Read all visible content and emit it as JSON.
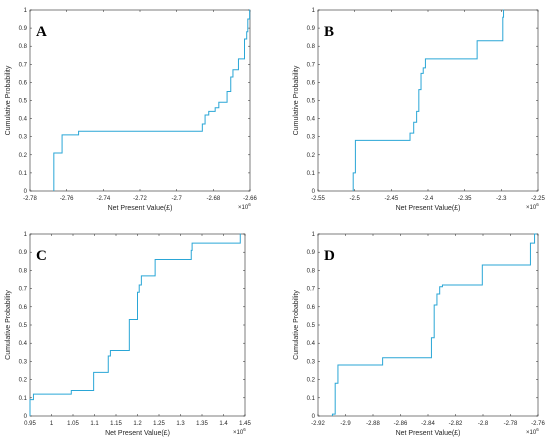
{
  "figure": {
    "line_color": "#2aa6d6",
    "axis_color": "#262626"
  },
  "chart_data": [
    {
      "panel": "A",
      "type": "line",
      "step": true,
      "xlabel": "Net Present Value(£)",
      "ylabel": "Cumulative Probability",
      "x_multiplier": "×10",
      "x_multiplier_exp": "6",
      "xlim": [
        -2.78,
        -2.66
      ],
      "ylim": [
        0,
        1
      ],
      "xticks": [
        "-2.78",
        "-2.76",
        "-2.74",
        "-2.72",
        "-2.7",
        "-2.68",
        "-2.66"
      ],
      "yticks": [
        "0",
        "0.1",
        "0.2",
        "0.3",
        "0.4",
        "0.5",
        "0.6",
        "0.7",
        "0.8",
        "0.9",
        "1"
      ],
      "series": [
        {
          "x": [
            -2.767,
            -2.767,
            -2.7625,
            -2.7625,
            -2.7535,
            -2.7535,
            -2.686,
            -2.686,
            -2.6845,
            -2.6845,
            -2.6825,
            -2.6825,
            -2.679,
            -2.679,
            -2.677,
            -2.677,
            -2.6755,
            -2.6755,
            -2.6725,
            -2.6725,
            -2.6705,
            -2.6705,
            -2.6693,
            -2.6693,
            -2.6663,
            -2.6663,
            -2.663,
            -2.663,
            -2.6618,
            -2.6618,
            -2.6612,
            -2.6612,
            -2.6602,
            -2.6602,
            -2.66
          ],
          "y": [
            0,
            0.21,
            0.21,
            0.31,
            0.31,
            0.33,
            0.33,
            0.37,
            0.37,
            0.42,
            0.42,
            0.44,
            0.44,
            0.46,
            0.46,
            0.49,
            0.49,
            0.49,
            0.49,
            0.55,
            0.55,
            0.63,
            0.63,
            0.67,
            0.67,
            0.73,
            0.73,
            0.84,
            0.84,
            0.88,
            0.88,
            0.95,
            0.95,
            1.0,
            1.0
          ]
        }
      ]
    },
    {
      "panel": "B",
      "type": "line",
      "step": true,
      "xlabel": "Net Present Value(£)",
      "ylabel": "Cumulative Probability",
      "x_multiplier": "×10",
      "x_multiplier_exp": "6",
      "xlim": [
        -2.55,
        -2.25
      ],
      "ylim": [
        0,
        1
      ],
      "xticks": [
        "-2.55",
        "-2.5",
        "-2.45",
        "-2.4",
        "-2.35",
        "-2.3",
        "-2.25"
      ],
      "yticks": [
        "0",
        "0.1",
        "0.2",
        "0.3",
        "0.4",
        "0.5",
        "0.6",
        "0.7",
        "0.8",
        "0.9",
        "1"
      ],
      "series": [
        {
          "x": [
            -2.502,
            -2.502,
            -2.499,
            -2.499,
            -2.4245,
            -2.4245,
            -2.4195,
            -2.4195,
            -2.4155,
            -2.4155,
            -2.4125,
            -2.4125,
            -2.4095,
            -2.4095,
            -2.4065,
            -2.4065,
            -2.4035,
            -2.4035,
            -2.333,
            -2.333,
            -2.298,
            -2.298,
            -2.297,
            -2.297,
            -2.2965
          ],
          "y": [
            0,
            0.1,
            0.1,
            0.28,
            0.28,
            0.32,
            0.32,
            0.38,
            0.38,
            0.44,
            0.44,
            0.56,
            0.56,
            0.65,
            0.65,
            0.68,
            0.68,
            0.73,
            0.73,
            0.83,
            0.83,
            0.96,
            0.96,
            1.0,
            1.0
          ]
        }
      ]
    },
    {
      "panel": "C",
      "type": "line",
      "step": true,
      "xlabel": "Net Present Value(£)",
      "ylabel": "Cumulative Probability",
      "x_multiplier": "×10",
      "x_multiplier_exp": "6",
      "xlim": [
        0.95,
        1.45
      ],
      "ylim": [
        0,
        1
      ],
      "xticks": [
        "0.95",
        "1",
        "1.05",
        "1.1",
        "1.15",
        "1.2",
        "1.25",
        "1.3",
        "1.35",
        "1.4",
        "1.45"
      ],
      "yticks": [
        "0",
        "0.1",
        "0.2",
        "0.3",
        "0.4",
        "0.5",
        "0.6",
        "0.7",
        "0.8",
        "0.9",
        "1"
      ],
      "series": [
        {
          "x": [
            0.95,
            0.95,
            0.958,
            0.958,
            1.046,
            1.046,
            1.098,
            1.098,
            1.132,
            1.132,
            1.137,
            1.137,
            1.181,
            1.181,
            1.2,
            1.2,
            1.204,
            1.204,
            1.209,
            1.209,
            1.241,
            1.241,
            1.325,
            1.325,
            1.327,
            1.327,
            1.439,
            1.439,
            1.44
          ],
          "y": [
            0,
            0.09,
            0.09,
            0.12,
            0.12,
            0.14,
            0.14,
            0.24,
            0.24,
            0.33,
            0.33,
            0.36,
            0.36,
            0.53,
            0.53,
            0.68,
            0.68,
            0.72,
            0.72,
            0.77,
            0.77,
            0.86,
            0.86,
            0.91,
            0.91,
            0.95,
            0.95,
            1.0,
            1.0
          ]
        }
      ]
    },
    {
      "panel": "D",
      "type": "line",
      "step": true,
      "xlabel": "Net Present Value(£)",
      "ylabel": "Cumulative Probability",
      "x_multiplier": "×10",
      "x_multiplier_exp": "6",
      "xlim": [
        -2.92,
        -2.76
      ],
      "ylim": [
        0,
        1
      ],
      "xticks": [
        "-2.92",
        "-2.9",
        "-2.88",
        "-2.86",
        "-2.84",
        "-2.82",
        "-2.8",
        "-2.78",
        "-2.76"
      ],
      "yticks": [
        "0",
        "0.1",
        "0.2",
        "0.3",
        "0.4",
        "0.5",
        "0.6",
        "0.7",
        "0.8",
        "0.9",
        "1"
      ],
      "series": [
        {
          "x": [
            -2.9095,
            -2.9095,
            -2.9075,
            -2.9075,
            -2.9055,
            -2.9055,
            -2.873,
            -2.873,
            -2.8375,
            -2.8375,
            -2.8355,
            -2.8355,
            -2.8335,
            -2.8335,
            -2.8315,
            -2.8315,
            -2.8295,
            -2.8295,
            -2.8005,
            -2.8005,
            -2.7655,
            -2.7655,
            -2.7625,
            -2.7625,
            -2.761
          ],
          "y": [
            0,
            0.01,
            0.01,
            0.18,
            0.18,
            0.28,
            0.28,
            0.32,
            0.32,
            0.43,
            0.43,
            0.61,
            0.61,
            0.67,
            0.67,
            0.71,
            0.71,
            0.72,
            0.72,
            0.83,
            0.83,
            0.95,
            0.95,
            1.0,
            1.0
          ]
        }
      ]
    }
  ]
}
